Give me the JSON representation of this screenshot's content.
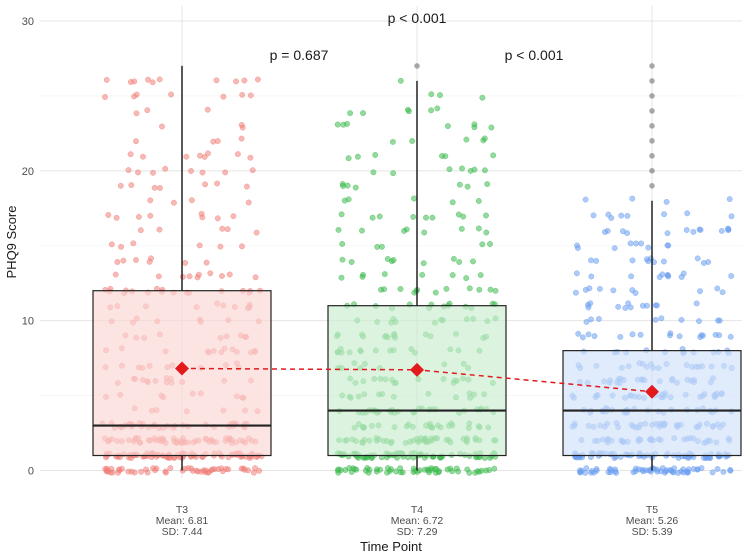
{
  "chart_data": {
    "type": "box",
    "xlabel": "Time Point",
    "ylabel": "PHQ9 Score",
    "ylim": [
      -0.5,
      31
    ],
    "y_ticks": [
      0,
      10,
      20,
      30
    ],
    "y_tick_labels": [
      "0",
      "10",
      "20",
      "30"
    ],
    "grid": true,
    "legend": "none",
    "groups": [
      {
        "name": "T3",
        "mean_label": "Mean: 6.81",
        "sd_label": "SD: 7.44",
        "mean": 6.81,
        "sd": 7.44,
        "q1": 1,
        "median": 3,
        "q3": 12,
        "whisker_low": 0,
        "whisker_high": 27,
        "outliers": [],
        "fill_color": "#fbd6d4",
        "point_color": "#f07f78"
      },
      {
        "name": "T4",
        "mean_label": "Mean: 6.72",
        "sd_label": "SD: 7.29",
        "mean": 6.72,
        "sd": 7.29,
        "q1": 1,
        "median": 4,
        "q3": 11,
        "whisker_low": 0,
        "whisker_high": 26,
        "outliers": [
          27
        ],
        "fill_color": "#c9ecd0",
        "point_color": "#3dba4e"
      },
      {
        "name": "T5",
        "mean_label": "Mean: 5.26",
        "sd_label": "SD: 5.39",
        "mean": 5.26,
        "sd": 5.39,
        "q1": 1,
        "median": 4,
        "q3": 8,
        "whisker_low": 0,
        "whisker_high": 18,
        "outliers": [
          19,
          20,
          21,
          22,
          23,
          24,
          25,
          26,
          27
        ],
        "fill_color": "#cfe0f9",
        "point_color": "#6b9ef0"
      }
    ],
    "mean_line": {
      "color": "#e31a1c",
      "style": "dashed",
      "marker": "diamond"
    },
    "annotations": [
      {
        "text": "p < 0.001",
        "comparison": "T3 vs T5"
      },
      {
        "text": "p = 0.687",
        "comparison": "T3 vs T4"
      },
      {
        "text": "p < 0.001",
        "comparison": "T4 vs T5"
      }
    ],
    "jitter_points_per_group": 420
  }
}
